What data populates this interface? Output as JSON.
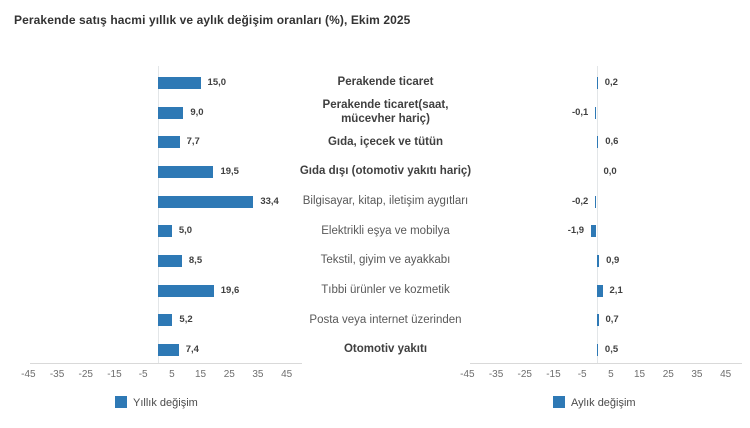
{
  "title": "Perakende satış hacmi yıllık ve aylık değişim oranları (%), Ekim 2025",
  "colors": {
    "bar": "#2e79b5",
    "axis_line": "#d9d9d9",
    "tick_text": "#6e6e6e",
    "category_bold": "#404040",
    "category_regular": "#595959",
    "value_text": "#404040",
    "title_text": "#333333"
  },
  "chart_data": {
    "type": "bar",
    "orientation": "horizontal",
    "unit": "%",
    "title": "Perakende satış hacmi yıllık ve aylık değişim oranları (%), Ekim 2025",
    "categories": [
      "Perakende ticaret",
      "Perakende ticaret(saat, mücevher hariç)",
      "Gıda, içecek ve tütün",
      "Gıda dışı (otomotiv yakıtı hariç)",
      "Bilgisayar, kitap, iletişim aygıtları",
      "Elektrikli eşya ve mobilya",
      "Tekstil, giyim ve ayakkabı",
      "Tıbbi ürünler ve kozmetik",
      "Posta veya internet üzerinden",
      "Otomotiv yakıtı"
    ],
    "bold_flags": [
      true,
      true,
      true,
      true,
      false,
      false,
      false,
      false,
      false,
      true
    ],
    "series": [
      {
        "name": "Yıllık değişim",
        "values": [
          15.0,
          9.0,
          7.7,
          19.5,
          33.4,
          5.0,
          8.5,
          19.6,
          5.2,
          7.4
        ]
      },
      {
        "name": "Aylık değişim",
        "values": [
          0.2,
          -0.1,
          0.6,
          0.0,
          -0.2,
          -1.9,
          0.9,
          2.1,
          0.7,
          0.5
        ]
      }
    ],
    "x_ticks": [
      -45,
      -35,
      -25,
      -15,
      -5,
      5,
      15,
      25,
      35,
      45
    ],
    "xlim": [
      -45,
      45
    ],
    "decimal_separator": ",",
    "grid": "zero-line-only",
    "legend_position": "bottom"
  }
}
